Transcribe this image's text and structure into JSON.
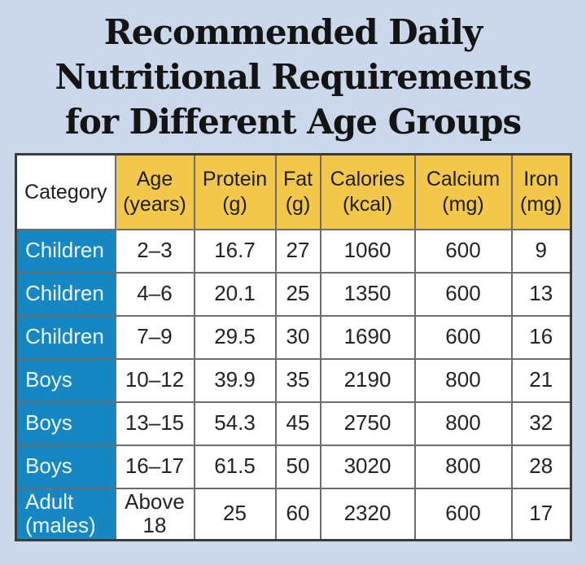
{
  "page": {
    "background_color": "#cbd8ec",
    "title_lines": [
      "Recommended Daily",
      "Nutritional Requirements",
      "for Different Age Groups"
    ],
    "title_color": "#141414"
  },
  "table": {
    "header_bg": "#f2c74a",
    "category_header_bg": "#ffffff",
    "row_label_bg": "#1787c4",
    "row_label_text_color": "#ecf7fd",
    "outer_border_color": "#3b3b3b",
    "grid_color": "#6d6d6d",
    "columns": [
      {
        "label": "Category",
        "sub": ""
      },
      {
        "label": "Age",
        "sub": "(years)"
      },
      {
        "label": "Protein",
        "sub": "(g)"
      },
      {
        "label": "Fat",
        "sub": "(g)"
      },
      {
        "label": "Calories",
        "sub": "(kcal)"
      },
      {
        "label": "Calcium",
        "sub": "(mg)"
      },
      {
        "label": "Iron",
        "sub": "(mg)"
      }
    ],
    "rows": [
      {
        "category": "Children",
        "age": "2–3",
        "protein": "16.7",
        "fat": "27",
        "calories": "1060",
        "calcium": "600",
        "iron": "9"
      },
      {
        "category": "Children",
        "age": "4–6",
        "protein": "20.1",
        "fat": "25",
        "calories": "1350",
        "calcium": "600",
        "iron": "13"
      },
      {
        "category": "Children",
        "age": "7–9",
        "protein": "29.5",
        "fat": "30",
        "calories": "1690",
        "calcium": "600",
        "iron": "16"
      },
      {
        "category": "Boys",
        "age": "10–12",
        "protein": "39.9",
        "fat": "35",
        "calories": "2190",
        "calcium": "800",
        "iron": "21"
      },
      {
        "category": "Boys",
        "age": "13–15",
        "protein": "54.3",
        "fat": "45",
        "calories": "2750",
        "calcium": "800",
        "iron": "32"
      },
      {
        "category": "Boys",
        "age": "16–17",
        "protein": "61.5",
        "fat": "50",
        "calories": "3020",
        "calcium": "800",
        "iron": "28"
      },
      {
        "category": "Adult (males)",
        "age": "Above 18",
        "protein": "25",
        "fat": "60",
        "calories": "2320",
        "calcium": "600",
        "iron": "17"
      }
    ]
  },
  "chart_data": {
    "type": "table",
    "title": "Recommended Daily Nutritional Requirements for Different Age Groups",
    "columns": [
      "Category",
      "Age (years)",
      "Protein (g)",
      "Fat (g)",
      "Calories (kcal)",
      "Calcium (mg)",
      "Iron (mg)"
    ],
    "rows": [
      [
        "Children",
        "2–3",
        16.7,
        27,
        1060,
        600,
        9
      ],
      [
        "Children",
        "4–6",
        20.1,
        25,
        1350,
        600,
        13
      ],
      [
        "Children",
        "7–9",
        29.5,
        30,
        1690,
        600,
        16
      ],
      [
        "Boys",
        "10–12",
        39.9,
        35,
        2190,
        800,
        21
      ],
      [
        "Boys",
        "13–15",
        54.3,
        45,
        2750,
        800,
        32
      ],
      [
        "Boys",
        "16–17",
        61.5,
        50,
        3020,
        800,
        28
      ],
      [
        "Adult (males)",
        "Above 18",
        25,
        60,
        2320,
        600,
        17
      ]
    ]
  }
}
